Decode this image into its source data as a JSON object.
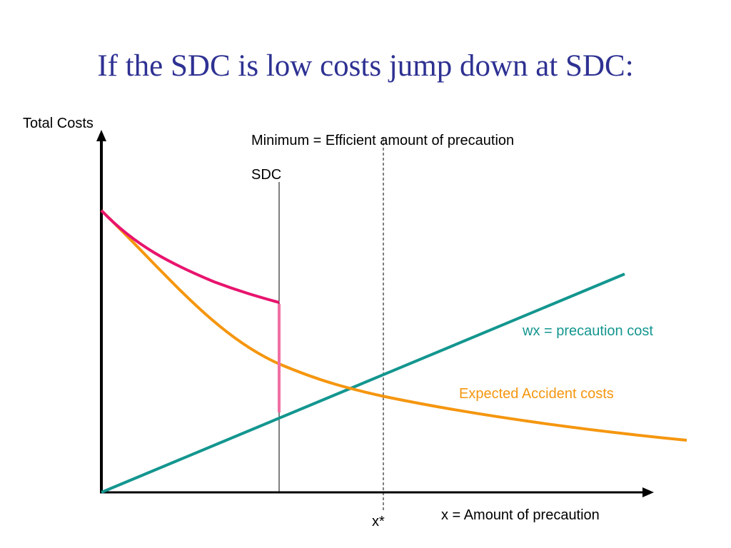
{
  "title": "If the SDC is low costs jump down at SDC:",
  "labels": {
    "y_axis": "Total Costs",
    "x_axis": "x = Amount of precaution",
    "x_star": "x*",
    "minimum_note": "Minimum = Efficient amount of precaution",
    "sdc": "SDC",
    "precaution_cost": "wx = precaution cost",
    "expected_accident_costs": "Expected Accident costs"
  },
  "colors": {
    "title": "#2e3192",
    "axes": "#000000",
    "precaution_line": "#13968f",
    "accident_curve": "#f5960f",
    "total_cost_curve": "#e8146e",
    "jump_segment": "#f06ea3",
    "sdc_line": "#000000",
    "x_star_line": "#000000"
  }
}
